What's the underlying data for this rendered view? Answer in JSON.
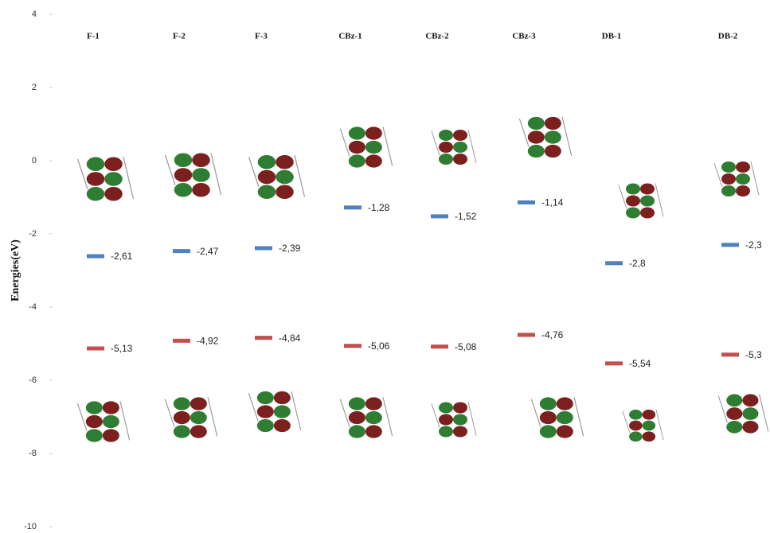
{
  "chart_data": {
    "type": "energy-level",
    "y_label": "Energies(eV)",
    "categories": [
      "F-1",
      "F-2",
      "F-3",
      "CBz-1",
      "CBz-2",
      "CBz-3",
      "DB-1",
      "DB-2"
    ],
    "series": [
      {
        "color": "#4f81bd",
        "values": [
          -2.61,
          -2.47,
          -2.39,
          -1.28,
          -1.52,
          -1.14,
          -2.8,
          -2.3
        ],
        "value_labels": [
          "-2,61",
          "-2,47",
          "-2,39",
          "-1,28",
          "-1,52",
          "-1,14",
          "-2,8",
          "-2,3"
        ]
      },
      {
        "color": "#c0504d",
        "values": [
          -5.13,
          -4.92,
          -4.84,
          -5.06,
          -5.08,
          -4.76,
          -5.54,
          -5.3
        ],
        "value_labels": [
          "-5,13",
          "-4,92",
          "-4,84",
          "-5,06",
          "-5,08",
          "-4,76",
          "-5,54",
          "-5,3"
        ]
      }
    ],
    "ylim": [
      -10,
      4
    ],
    "yticks": [
      -10,
      -8,
      -6,
      -4,
      -2,
      0,
      2,
      4
    ]
  }
}
